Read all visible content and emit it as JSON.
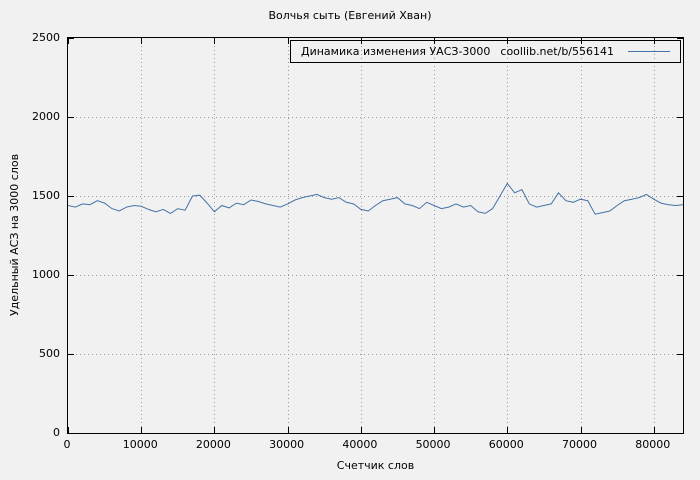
{
  "title": "Волчья сыть (Евгений Хван)",
  "legend": {
    "label": "Динамика изменения УАСЗ-3000",
    "link": "coollib.net/b/556141"
  },
  "colors": {
    "line": "#4572a7",
    "grid": "#9a9a9a",
    "border": "#000000",
    "background": "#f1f1f1",
    "text": "#000000"
  },
  "chart_data": {
    "type": "line",
    "title": "Волчья сыть (Евгений Хван)",
    "xlabel": "Счетчик слов",
    "ylabel": "Удельный АСЗ на 3000 слов",
    "xlim": [
      0,
      84000
    ],
    "ylim": [
      0,
      2500
    ],
    "xticks": [
      0,
      10000,
      20000,
      30000,
      40000,
      50000,
      60000,
      70000,
      80000
    ],
    "yticks": [
      0,
      500,
      1000,
      1500,
      2000,
      2500
    ],
    "grid": true,
    "legend_position": "top-right",
    "series": [
      {
        "name": "Динамика изменения УАСЗ-3000 coollib.net/b/556141",
        "x": [
          0,
          1000,
          2000,
          3000,
          4000,
          5000,
          6000,
          7000,
          8000,
          9000,
          10000,
          11000,
          12000,
          13000,
          14000,
          15000,
          16000,
          17000,
          18000,
          19000,
          20000,
          21000,
          22000,
          23000,
          24000,
          25000,
          26000,
          27000,
          28000,
          29000,
          30000,
          31000,
          32000,
          33000,
          34000,
          35000,
          36000,
          37000,
          38000,
          39000,
          40000,
          41000,
          42000,
          43000,
          44000,
          45000,
          46000,
          47000,
          48000,
          49000,
          50000,
          51000,
          52000,
          53000,
          54000,
          55000,
          56000,
          57000,
          58000,
          59000,
          60000,
          61000,
          62000,
          63000,
          64000,
          65000,
          66000,
          67000,
          68000,
          69000,
          70000,
          71000,
          72000,
          73000,
          74000,
          75000,
          76000,
          77000,
          78000,
          79000,
          80000,
          81000,
          82000,
          83000,
          84000
        ],
        "y": [
          1440,
          1430,
          1450,
          1445,
          1470,
          1455,
          1420,
          1405,
          1430,
          1440,
          1435,
          1415,
          1400,
          1415,
          1390,
          1420,
          1410,
          1500,
          1505,
          1455,
          1400,
          1440,
          1425,
          1455,
          1445,
          1475,
          1465,
          1450,
          1440,
          1430,
          1450,
          1475,
          1490,
          1500,
          1510,
          1490,
          1480,
          1490,
          1460,
          1450,
          1415,
          1405,
          1440,
          1470,
          1480,
          1490,
          1450,
          1440,
          1420,
          1460,
          1440,
          1420,
          1430,
          1450,
          1430,
          1440,
          1400,
          1390,
          1420,
          1500,
          1580,
          1520,
          1540,
          1450,
          1430,
          1440,
          1450,
          1520,
          1470,
          1460,
          1480,
          1470,
          1385,
          1395,
          1405,
          1440,
          1470,
          1480,
          1490,
          1510,
          1480,
          1455,
          1445,
          1440,
          1445
        ]
      }
    ]
  }
}
